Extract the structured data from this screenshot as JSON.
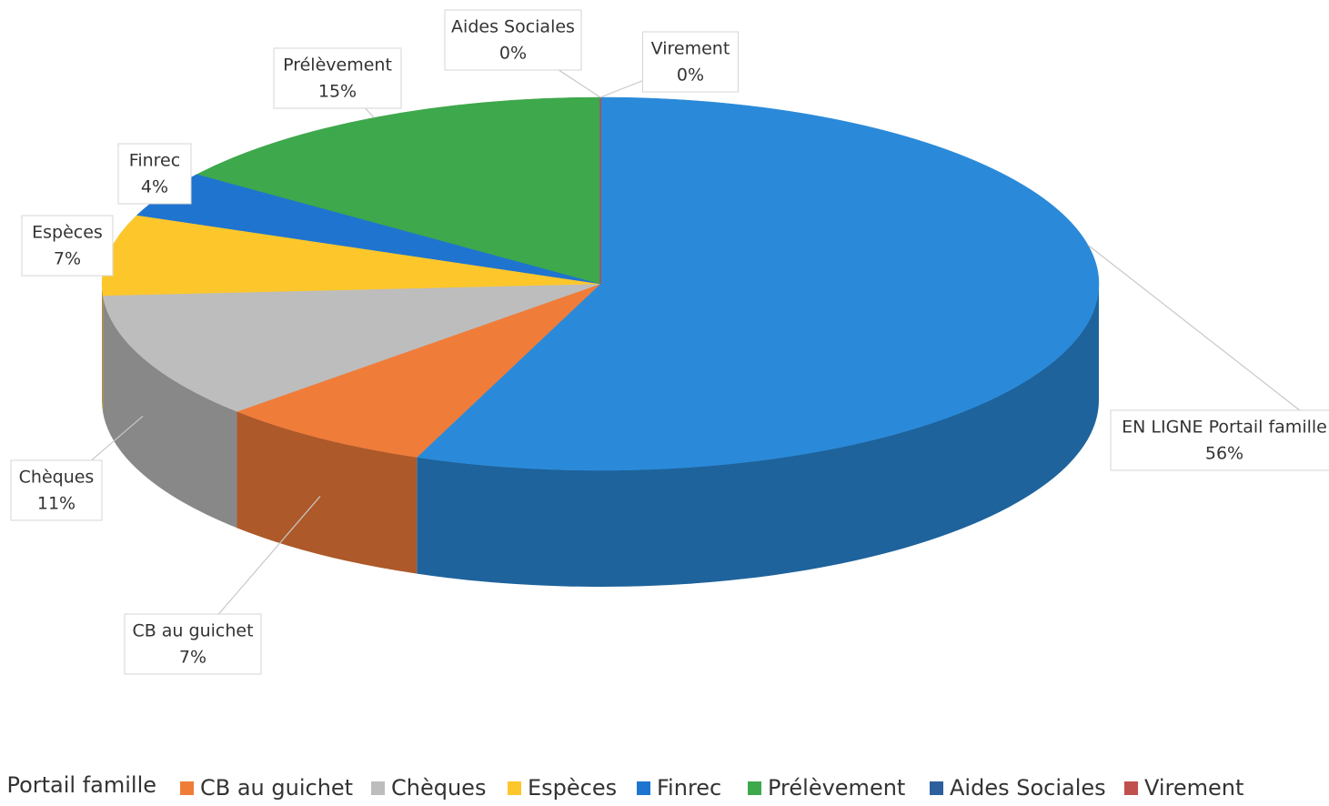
{
  "chart_data": {
    "type": "pie",
    "categories": [
      "EN LIGNE Portail famille",
      "CB au guichet",
      "Chèques",
      "Espèces",
      "Finrec",
      "Prélèvement",
      "Aides Sociales",
      "Virement"
    ],
    "values": [
      56,
      7,
      11,
      7,
      4,
      15,
      0,
      0
    ],
    "value_labels": [
      "56%",
      "7%",
      "11%",
      "7%",
      "4%",
      "15%",
      "0%",
      "0%"
    ],
    "colors": [
      "#2a8ad9",
      "#f07c3a",
      "#bdbdbd",
      "#fdc72c",
      "#1f74cf",
      "#3ea84c",
      "#2d5f9e",
      "#c0504d"
    ],
    "legend": "bottom"
  }
}
